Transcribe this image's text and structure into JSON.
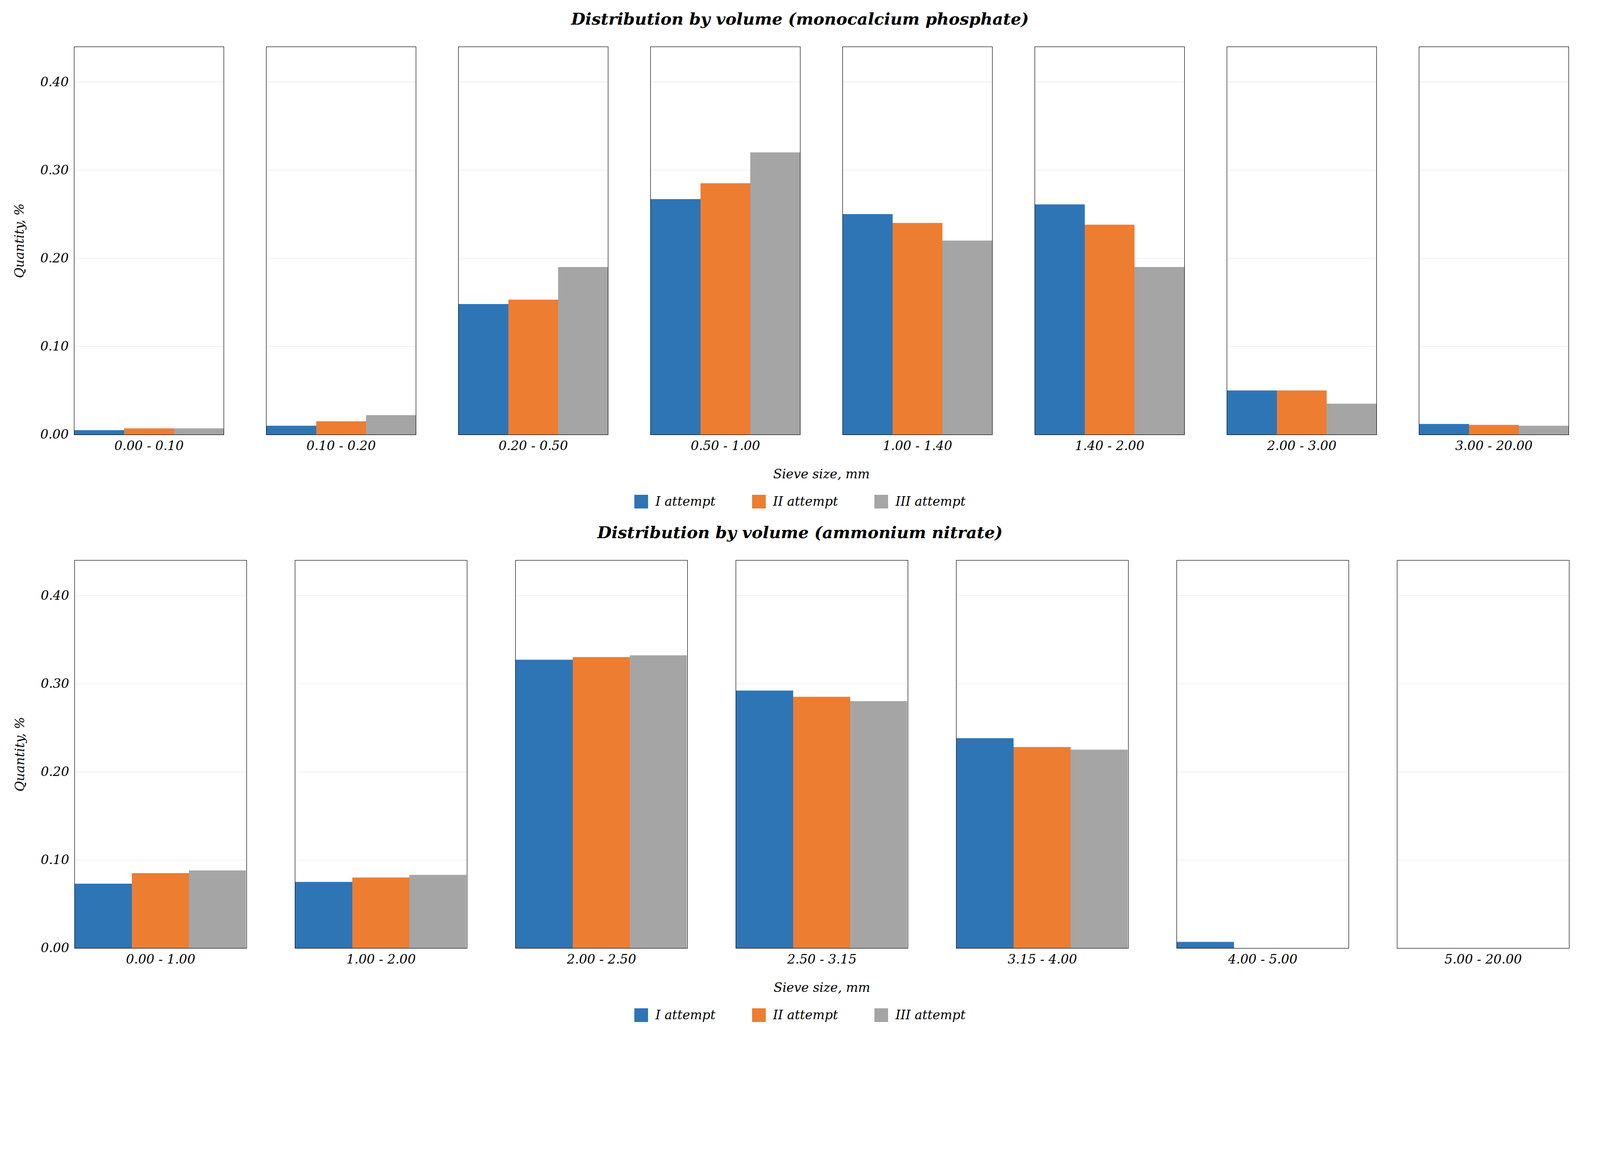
{
  "chart_data": [
    {
      "type": "bar",
      "title": "Distribution by volume (monocalcium phosphate)",
      "categories": [
        "0.00 - 0.10",
        "0.10 - 0.20",
        "0.20 - 0.50",
        "0.50 - 1.00",
        "1.00 - 1.40",
        "1.40 - 2.00",
        "2.00 - 3.00",
        "3.00 - 20.00"
      ],
      "series": [
        {
          "name": "I attempt",
          "color": "#2E75B6",
          "values": [
            0.005,
            0.01,
            0.148,
            0.267,
            0.25,
            0.261,
            0.05,
            0.012
          ]
        },
        {
          "name": "II attempt",
          "color": "#ED7D31",
          "values": [
            0.007,
            0.015,
            0.153,
            0.285,
            0.24,
            0.238,
            0.05,
            0.011
          ]
        },
        {
          "name": "III attempt",
          "color": "#A5A5A5",
          "values": [
            0.007,
            0.022,
            0.19,
            0.32,
            0.22,
            0.19,
            0.035,
            0.01
          ]
        }
      ],
      "xlabel": "Sieve size, mm",
      "ylabel": "Quantity, %",
      "ylim": [
        0,
        0.44
      ],
      "yticks": [
        {
          "value": 0,
          "label": "0.00"
        },
        {
          "value": 0.1,
          "label": "0.10"
        },
        {
          "value": 0.2,
          "label": "0.20"
        },
        {
          "value": 0.3,
          "label": "0.30"
        },
        {
          "value": 0.4,
          "label": "0.40"
        }
      ],
      "grid": true,
      "legend": "bottom"
    },
    {
      "type": "bar",
      "title": "Distribution by volume (ammonium nitrate)",
      "categories": [
        "0.00 - 1.00",
        "1.00 - 2.00",
        "2.00 - 2.50",
        "2.50 - 3.15",
        "3.15 - 4.00",
        "4.00 - 5.00",
        "5.00 - 20.00"
      ],
      "series": [
        {
          "name": "I attempt",
          "color": "#2E75B6",
          "values": [
            0.073,
            0.075,
            0.327,
            0.292,
            0.238,
            0.007,
            0.0
          ]
        },
        {
          "name": "II attempt",
          "color": "#ED7D31",
          "values": [
            0.085,
            0.08,
            0.33,
            0.285,
            0.228,
            0.0,
            0.0
          ]
        },
        {
          "name": "III attempt",
          "color": "#A5A5A5",
          "values": [
            0.088,
            0.083,
            0.332,
            0.28,
            0.225,
            0.0,
            0.0
          ]
        }
      ],
      "xlabel": "Sieve size, mm",
      "ylabel": "Quantity, %",
      "ylim": [
        0,
        0.44
      ],
      "yticks": [
        {
          "value": 0,
          "label": "0.00"
        },
        {
          "value": 0.1,
          "label": "0.10"
        },
        {
          "value": 0.2,
          "label": "0.20"
        },
        {
          "value": 0.3,
          "label": "0.30"
        },
        {
          "value": 0.4,
          "label": "0.40"
        }
      ],
      "grid": true,
      "legend": "bottom"
    }
  ]
}
